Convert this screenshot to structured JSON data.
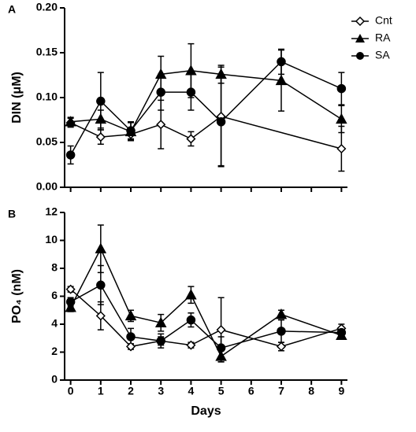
{
  "chart_data": [
    {
      "type": "line",
      "panel": "A",
      "y_label": "DIN (μM)",
      "xlim": [
        -0.2,
        9.2
      ],
      "ylim": [
        0,
        0.2
      ],
      "yticks": [
        {
          "value": 0,
          "label": "0.00"
        },
        {
          "value": 0.05,
          "label": "0.05"
        },
        {
          "value": 0.1,
          "label": "0.10"
        },
        {
          "value": 0.15,
          "label": "0.15"
        },
        {
          "value": 0.2,
          "label": "0.20"
        }
      ],
      "legend": "right",
      "series": [
        {
          "name": "Cnt",
          "color": "#000000",
          "marker": "diamond-open",
          "x": [
            0,
            1,
            2,
            3,
            4,
            5,
            9
          ],
          "values": [
            0.072,
            0.056,
            0.059,
            0.07,
            0.054,
            0.079,
            0.043
          ],
          "errors": [
            0.005,
            0.008,
            0.005,
            0.027,
            0.008,
            0.055,
            0.025
          ]
        },
        {
          "name": "RA",
          "color": "#000000",
          "marker": "triangle",
          "x": [
            0,
            1,
            2,
            3,
            4,
            5,
            7,
            9
          ],
          "values": [
            0.073,
            0.076,
            0.062,
            0.126,
            0.13,
            0.126,
            0.119,
            0.076
          ],
          "errors": [
            0.005,
            0.01,
            0.01,
            0.02,
            0.03,
            0.01,
            0.034,
            0.015
          ]
        },
        {
          "name": "SA",
          "color": "#000000",
          "marker": "circle",
          "x": [
            0,
            1,
            2,
            3,
            4,
            5,
            7,
            9
          ],
          "values": [
            0.036,
            0.096,
            0.063,
            0.106,
            0.106,
            0.073,
            0.14,
            0.11
          ],
          "errors": [
            0.01,
            0.032,
            0.01,
            0.02,
            0.02,
            0.05,
            0.014,
            0.018
          ]
        }
      ]
    },
    {
      "type": "line",
      "panel": "B",
      "y_label": "PO₄ (nM)",
      "x_label": "Days",
      "xlim": [
        -0.2,
        9.2
      ],
      "ylim": [
        0,
        12
      ],
      "xticks": [
        0,
        1,
        2,
        3,
        4,
        5,
        6,
        7,
        8,
        9
      ],
      "yticks": [
        0,
        2,
        4,
        6,
        8,
        10,
        12
      ],
      "series": [
        {
          "color": "#000000",
          "marker": "diamond-open",
          "x": [
            0,
            1,
            2,
            3,
            4,
            5,
            7,
            9
          ],
          "values": [
            6.5,
            4.6,
            2.4,
            2.8,
            2.5,
            3.6,
            2.4,
            3.7
          ],
          "errors": [
            0.2,
            1.0,
            0.2,
            0.3,
            0.2,
            2.3,
            0.3,
            0.3
          ]
        },
        {
          "color": "#000000",
          "marker": "triangle",
          "x": [
            0,
            1,
            2,
            3,
            4,
            5,
            7,
            9
          ],
          "values": [
            5.2,
            9.4,
            4.6,
            4.1,
            6.1,
            1.7,
            4.7,
            3.2
          ],
          "errors": [
            0.3,
            1.7,
            0.4,
            0.6,
            0.6,
            0.4,
            0.3,
            0.2
          ]
        },
        {
          "color": "#000000",
          "marker": "circle",
          "x": [
            0,
            1,
            2,
            3,
            4,
            5,
            7,
            9
          ],
          "values": [
            5.6,
            6.8,
            3.1,
            2.8,
            4.3,
            2.3,
            3.5,
            3.4
          ],
          "errors": [
            0.3,
            1.4,
            0.6,
            0.5,
            0.5,
            0.8,
            0.8,
            0.3
          ]
        }
      ]
    }
  ]
}
